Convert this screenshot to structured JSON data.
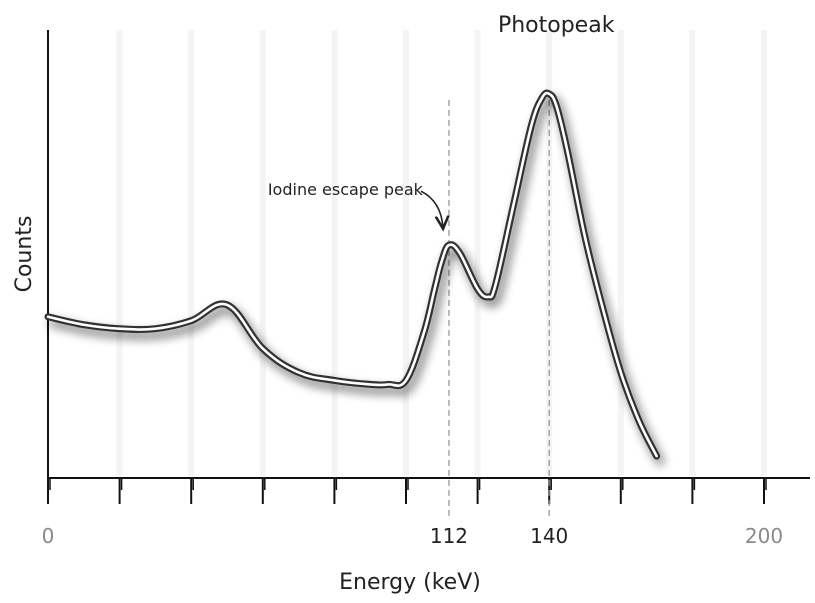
{
  "chart_data": {
    "type": "line",
    "title": "",
    "xlabel": "Energy (keV)",
    "ylabel": "Counts",
    "xlim": [
      0,
      215
    ],
    "ylim": [
      0,
      1
    ],
    "x_tick_values": [
      0,
      20,
      40,
      60,
      80,
      100,
      120,
      140,
      160,
      180,
      200
    ],
    "x_tick_labels": [
      {
        "value": 0,
        "label": "0",
        "style": "gray"
      },
      {
        "value": 112,
        "label": "112",
        "style": "dark"
      },
      {
        "value": 140,
        "label": "140",
        "style": "dark"
      },
      {
        "value": 200,
        "label": "200",
        "style": "gray"
      }
    ],
    "reference_lines": [
      {
        "x": 112
      },
      {
        "x": 140
      }
    ],
    "annotations": [
      {
        "text": "Iodine escape peak",
        "x": 112,
        "y": 0.58
      },
      {
        "text": "Photopeak",
        "x": 140,
        "y": 0.94
      }
    ],
    "grid": false,
    "series": [
      {
        "color": "#333333",
        "x": [
          0,
          10,
          20,
          30,
          40,
          50,
          60,
          70,
          80,
          90,
          95,
          100,
          105,
          108,
          110,
          112,
          115,
          120,
          123,
          125,
          130,
          135,
          138,
          140,
          142,
          145,
          150,
          155,
          160,
          165,
          170
        ],
        "y": [
          0.38,
          0.36,
          0.35,
          0.35,
          0.37,
          0.41,
          0.3,
          0.24,
          0.22,
          0.21,
          0.21,
          0.22,
          0.34,
          0.45,
          0.52,
          0.56,
          0.54,
          0.45,
          0.43,
          0.46,
          0.66,
          0.86,
          0.93,
          0.94,
          0.91,
          0.8,
          0.58,
          0.4,
          0.24,
          0.12,
          0.03
        ]
      }
    ]
  }
}
